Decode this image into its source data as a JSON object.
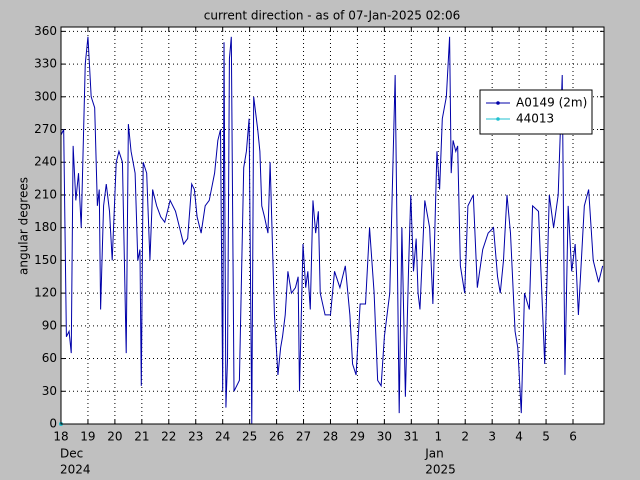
{
  "chart_data": {
    "type": "line",
    "title": "current direction - as of 07-Jan-2025 02:06",
    "y_label": "angular degrees",
    "ylim": [
      0,
      364
    ],
    "yticks": [
      0,
      30,
      60,
      90,
      120,
      150,
      180,
      210,
      240,
      270,
      300,
      330,
      360
    ],
    "xlim": [
      18,
      38.15
    ],
    "xticks": [
      18,
      19,
      20,
      21,
      22,
      23,
      24,
      25,
      26,
      27,
      28,
      29,
      30,
      31,
      {
        "value": 32,
        "label": "1"
      },
      {
        "value": 33,
        "label": "2"
      },
      {
        "value": 34,
        "label": "3"
      },
      {
        "value": 35,
        "label": "4"
      },
      {
        "value": 36,
        "label": "5"
      },
      {
        "value": 37,
        "label": "6"
      }
    ],
    "x_month_labels": [
      {
        "value": 18,
        "month": "Dec",
        "year": "2024"
      },
      {
        "value": 32,
        "month": "Jan",
        "year": "2025"
      }
    ],
    "grid": true,
    "legend": "northeast",
    "series": [
      {
        "name": "A0149 (2m)",
        "color": "#0000a8",
        "x": [
          18.0,
          18.1,
          18.2,
          18.3,
          18.38,
          18.45,
          18.55,
          18.65,
          18.75,
          18.9,
          19.0,
          19.12,
          19.25,
          19.35,
          19.42,
          19.47,
          19.58,
          19.68,
          19.8,
          19.9,
          20.05,
          20.15,
          20.28,
          20.42,
          20.5,
          20.6,
          20.75,
          20.85,
          20.93,
          20.98,
          21.05,
          21.18,
          21.3,
          21.4,
          21.55,
          21.7,
          21.85,
          22.05,
          22.25,
          22.4,
          22.55,
          22.7,
          22.85,
          22.95,
          23.05,
          23.2,
          23.35,
          23.5,
          23.7,
          23.82,
          23.92,
          24.0,
          24.05,
          24.12,
          24.18,
          24.25,
          24.32,
          24.42,
          24.62,
          24.78,
          24.88,
          24.98,
          25.08,
          25.15,
          25.3,
          25.38,
          25.45,
          25.55,
          25.68,
          25.76,
          25.92,
          26.05,
          26.15,
          26.22,
          26.32,
          26.42,
          26.55,
          26.7,
          26.8,
          26.85,
          26.98,
          27.08,
          27.16,
          27.25,
          27.35,
          27.45,
          27.55,
          27.62,
          27.8,
          28.0,
          28.15,
          28.35,
          28.55,
          28.72,
          28.82,
          28.95,
          29.1,
          29.3,
          29.45,
          29.62,
          29.75,
          29.88,
          30.0,
          30.2,
          30.4,
          30.55,
          30.65,
          30.78,
          30.9,
          30.98,
          31.08,
          31.18,
          31.25,
          31.32,
          31.5,
          31.68,
          31.8,
          31.95,
          32.05,
          32.15,
          32.3,
          32.42,
          32.48,
          32.55,
          32.65,
          32.72,
          32.82,
          32.98,
          33.1,
          33.3,
          33.45,
          33.65,
          33.85,
          34.05,
          34.2,
          34.3,
          34.42,
          34.55,
          34.68,
          34.85,
          34.95,
          35.08,
          35.2,
          35.38,
          35.5,
          35.72,
          35.95,
          36.12,
          36.28,
          36.45,
          36.6,
          36.7,
          36.82,
          36.95,
          37.08,
          37.2,
          37.42,
          37.58,
          37.75,
          37.95,
          38.1
        ],
        "values": [
          265,
          270,
          80,
          85,
          65,
          255,
          205,
          230,
          180,
          330,
          355,
          300,
          290,
          200,
          215,
          105,
          200,
          220,
          195,
          150,
          240,
          250,
          240,
          65,
          275,
          250,
          230,
          150,
          160,
          35,
          240,
          230,
          150,
          215,
          200,
          190,
          185,
          205,
          195,
          180,
          165,
          170,
          220,
          215,
          190,
          175,
          200,
          205,
          230,
          260,
          270,
          30,
          350,
          15,
          60,
          335,
          355,
          30,
          40,
          235,
          250,
          280,
          0,
          300,
          270,
          250,
          200,
          190,
          175,
          240,
          100,
          45,
          70,
          80,
          100,
          140,
          120,
          125,
          135,
          30,
          165,
          125,
          140,
          105,
          205,
          175,
          195,
          120,
          100,
          100,
          140,
          125,
          145,
          100,
          55,
          45,
          110,
          110,
          180,
          120,
          40,
          35,
          80,
          120,
          320,
          10,
          180,
          25,
          145,
          210,
          140,
          170,
          120,
          105,
          205,
          180,
          110,
          250,
          215,
          280,
          300,
          355,
          230,
          260,
          250,
          255,
          145,
          120,
          200,
          210,
          125,
          160,
          175,
          180,
          135,
          120,
          150,
          210,
          175,
          85,
          70,
          10,
          120,
          105,
          200,
          195,
          55,
          210,
          180,
          210,
          320,
          45,
          200,
          140,
          165,
          100,
          200,
          215,
          150,
          130,
          145
        ]
      },
      {
        "name": "44013",
        "color": "#20c0d0",
        "x": [
          18.0
        ],
        "values": [
          0
        ]
      }
    ]
  }
}
